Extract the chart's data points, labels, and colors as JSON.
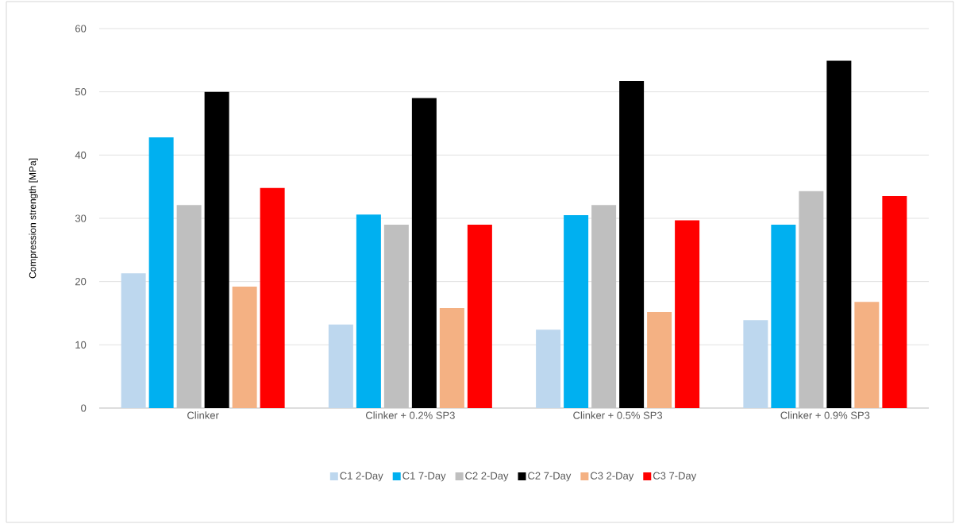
{
  "chart_data": {
    "type": "bar",
    "ylabel": "Compression strength [MPa]",
    "categories": [
      "Clinker",
      "Clinker + 0.2% SP3",
      "Clinker + 0.5% SP3",
      "Clinker + 0.9% SP3"
    ],
    "series": [
      {
        "name": "C1 2-Day",
        "color": "#bdd7ee",
        "values": [
          21.3,
          13.2,
          12.4,
          13.9
        ]
      },
      {
        "name": "C1 7-Day",
        "color": "#00b0f0",
        "values": [
          42.8,
          30.6,
          30.5,
          29.0
        ]
      },
      {
        "name": "C2 2-Day",
        "color": "#bfbfbf",
        "values": [
          32.1,
          29.0,
          32.1,
          34.3
        ]
      },
      {
        "name": "C2 7-Day",
        "color": "#000000",
        "values": [
          50.0,
          49.0,
          51.7,
          54.9
        ]
      },
      {
        "name": "C3 2-Day",
        "color": "#f4b183",
        "values": [
          19.2,
          15.8,
          15.2,
          16.8
        ]
      },
      {
        "name": "C3 7-Day",
        "color": "#ff0000",
        "values": [
          34.8,
          29.0,
          29.7,
          33.5
        ]
      }
    ],
    "ylim": [
      0,
      60
    ],
    "yticks": [
      0,
      10,
      20,
      30,
      40,
      50,
      60
    ],
    "grid": "y",
    "legend": "bottom"
  }
}
